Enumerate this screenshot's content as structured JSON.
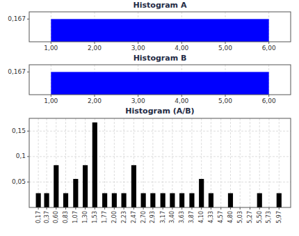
{
  "chart_data": [
    {
      "type": "histogram",
      "title": "Histogram A",
      "bins": [
        1,
        6
      ],
      "values": [
        0.167
      ],
      "color": "blue",
      "xlim": [
        0.5,
        6.5
      ],
      "xticks": [
        {
          "value": 1,
          "label": "1,00"
        },
        {
          "value": 2,
          "label": "2,00"
        },
        {
          "value": 3,
          "label": "3,00"
        },
        {
          "value": 4,
          "label": "4,00"
        },
        {
          "value": 5,
          "label": "5,00"
        },
        {
          "value": 6,
          "label": "6,00"
        }
      ],
      "ylim": [
        0,
        0.22
      ],
      "yticks": [
        {
          "value": 0.167,
          "label": "0,167"
        }
      ],
      "grid": "x"
    },
    {
      "type": "histogram",
      "title": "Histogram B",
      "bins": [
        1,
        6
      ],
      "values": [
        0.167
      ],
      "color": "blue",
      "xlim": [
        0.5,
        6.5
      ],
      "xticks": [
        {
          "value": 1,
          "label": "1,00"
        },
        {
          "value": 2,
          "label": "2,00"
        },
        {
          "value": 3,
          "label": "3,00"
        },
        {
          "value": 4,
          "label": "4,00"
        },
        {
          "value": 5,
          "label": "5,00"
        },
        {
          "value": 6,
          "label": "6,00"
        }
      ],
      "ylim": [
        0,
        0.22
      ],
      "yticks": [
        {
          "value": 0.167,
          "label": "0,167"
        }
      ],
      "grid": "x"
    },
    {
      "type": "bar",
      "title": "Histogram (A/B)",
      "x": [
        0.17,
        0.37,
        0.6,
        0.83,
        1.07,
        1.3,
        1.53,
        1.77,
        2.0,
        2.23,
        2.47,
        2.7,
        2.93,
        3.17,
        3.4,
        3.63,
        3.87,
        4.1,
        4.33,
        4.57,
        4.8,
        5.03,
        5.27,
        5.5,
        5.73,
        5.97
      ],
      "values": [
        0.028,
        0.028,
        0.083,
        0.028,
        0.056,
        0.083,
        0.167,
        0.028,
        0.028,
        0.028,
        0.083,
        0.028,
        0.028,
        0.028,
        0.028,
        0.028,
        0.028,
        0.056,
        0.028,
        0.0,
        0.028,
        0.0,
        0.0,
        0.028,
        0.0,
        0.028
      ],
      "color": "black",
      "xlim": [
        -0.05,
        6.25
      ],
      "xticks": [
        {
          "value": 0.17,
          "label": "0,17"
        },
        {
          "value": 0.37,
          "label": "0,37"
        },
        {
          "value": 0.6,
          "label": "0,60"
        },
        {
          "value": 0.83,
          "label": "0,83"
        },
        {
          "value": 1.07,
          "label": "1,07"
        },
        {
          "value": 1.3,
          "label": "1,30"
        },
        {
          "value": 1.53,
          "label": "1,53"
        },
        {
          "value": 1.77,
          "label": "1,77"
        },
        {
          "value": 2.0,
          "label": "2,00"
        },
        {
          "value": 2.23,
          "label": "2,23"
        },
        {
          "value": 2.47,
          "label": "2,47"
        },
        {
          "value": 2.7,
          "label": "2,70"
        },
        {
          "value": 2.93,
          "label": "2,93"
        },
        {
          "value": 3.17,
          "label": "3,17"
        },
        {
          "value": 3.4,
          "label": "3,40"
        },
        {
          "value": 3.63,
          "label": "3,63"
        },
        {
          "value": 3.87,
          "label": "3,87"
        },
        {
          "value": 4.1,
          "label": "4,10"
        },
        {
          "value": 4.33,
          "label": "4,33"
        },
        {
          "value": 4.57,
          "label": "4,57"
        },
        {
          "value": 4.8,
          "label": "4,80"
        },
        {
          "value": 5.03,
          "label": "5,03"
        },
        {
          "value": 5.27,
          "label": "5,27"
        },
        {
          "value": 5.5,
          "label": "5,50"
        },
        {
          "value": 5.73,
          "label": "5,73"
        },
        {
          "value": 5.97,
          "label": "5,97"
        }
      ],
      "ylim": [
        0,
        0.175
      ],
      "yticks": [
        {
          "value": 0.05,
          "label": "0,05"
        },
        {
          "value": 0.1,
          "label": "0,1"
        },
        {
          "value": 0.15,
          "label": "0,15"
        }
      ],
      "grid": true
    }
  ]
}
